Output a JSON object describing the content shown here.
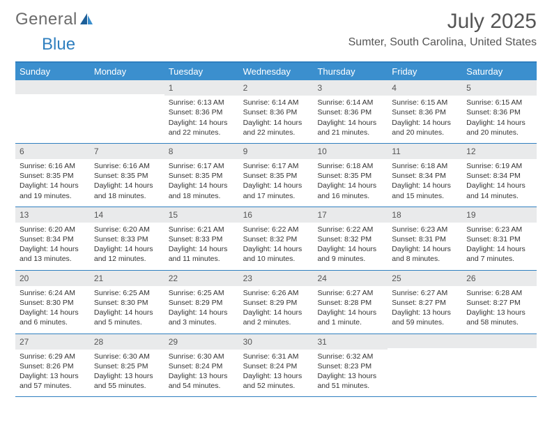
{
  "brand": {
    "word1": "General",
    "word2": "Blue"
  },
  "title": "July 2025",
  "location": "Sumter, South Carolina, United States",
  "colors": {
    "header_bg": "#3b8fce",
    "rule": "#2f7fbf",
    "daynum_bg": "#e9eaeb",
    "text": "#333333",
    "title_text": "#555555"
  },
  "day_headers": [
    "Sunday",
    "Monday",
    "Tuesday",
    "Wednesday",
    "Thursday",
    "Friday",
    "Saturday"
  ],
  "weeks": [
    [
      null,
      null,
      {
        "n": "1",
        "sr": "Sunrise: 6:13 AM",
        "ss": "Sunset: 8:36 PM",
        "d1": "Daylight: 14 hours",
        "d2": "and 22 minutes."
      },
      {
        "n": "2",
        "sr": "Sunrise: 6:14 AM",
        "ss": "Sunset: 8:36 PM",
        "d1": "Daylight: 14 hours",
        "d2": "and 22 minutes."
      },
      {
        "n": "3",
        "sr": "Sunrise: 6:14 AM",
        "ss": "Sunset: 8:36 PM",
        "d1": "Daylight: 14 hours",
        "d2": "and 21 minutes."
      },
      {
        "n": "4",
        "sr": "Sunrise: 6:15 AM",
        "ss": "Sunset: 8:36 PM",
        "d1": "Daylight: 14 hours",
        "d2": "and 20 minutes."
      },
      {
        "n": "5",
        "sr": "Sunrise: 6:15 AM",
        "ss": "Sunset: 8:36 PM",
        "d1": "Daylight: 14 hours",
        "d2": "and 20 minutes."
      }
    ],
    [
      {
        "n": "6",
        "sr": "Sunrise: 6:16 AM",
        "ss": "Sunset: 8:35 PM",
        "d1": "Daylight: 14 hours",
        "d2": "and 19 minutes."
      },
      {
        "n": "7",
        "sr": "Sunrise: 6:16 AM",
        "ss": "Sunset: 8:35 PM",
        "d1": "Daylight: 14 hours",
        "d2": "and 18 minutes."
      },
      {
        "n": "8",
        "sr": "Sunrise: 6:17 AM",
        "ss": "Sunset: 8:35 PM",
        "d1": "Daylight: 14 hours",
        "d2": "and 18 minutes."
      },
      {
        "n": "9",
        "sr": "Sunrise: 6:17 AM",
        "ss": "Sunset: 8:35 PM",
        "d1": "Daylight: 14 hours",
        "d2": "and 17 minutes."
      },
      {
        "n": "10",
        "sr": "Sunrise: 6:18 AM",
        "ss": "Sunset: 8:35 PM",
        "d1": "Daylight: 14 hours",
        "d2": "and 16 minutes."
      },
      {
        "n": "11",
        "sr": "Sunrise: 6:18 AM",
        "ss": "Sunset: 8:34 PM",
        "d1": "Daylight: 14 hours",
        "d2": "and 15 minutes."
      },
      {
        "n": "12",
        "sr": "Sunrise: 6:19 AM",
        "ss": "Sunset: 8:34 PM",
        "d1": "Daylight: 14 hours",
        "d2": "and 14 minutes."
      }
    ],
    [
      {
        "n": "13",
        "sr": "Sunrise: 6:20 AM",
        "ss": "Sunset: 8:34 PM",
        "d1": "Daylight: 14 hours",
        "d2": "and 13 minutes."
      },
      {
        "n": "14",
        "sr": "Sunrise: 6:20 AM",
        "ss": "Sunset: 8:33 PM",
        "d1": "Daylight: 14 hours",
        "d2": "and 12 minutes."
      },
      {
        "n": "15",
        "sr": "Sunrise: 6:21 AM",
        "ss": "Sunset: 8:33 PM",
        "d1": "Daylight: 14 hours",
        "d2": "and 11 minutes."
      },
      {
        "n": "16",
        "sr": "Sunrise: 6:22 AM",
        "ss": "Sunset: 8:32 PM",
        "d1": "Daylight: 14 hours",
        "d2": "and 10 minutes."
      },
      {
        "n": "17",
        "sr": "Sunrise: 6:22 AM",
        "ss": "Sunset: 8:32 PM",
        "d1": "Daylight: 14 hours",
        "d2": "and 9 minutes."
      },
      {
        "n": "18",
        "sr": "Sunrise: 6:23 AM",
        "ss": "Sunset: 8:31 PM",
        "d1": "Daylight: 14 hours",
        "d2": "and 8 minutes."
      },
      {
        "n": "19",
        "sr": "Sunrise: 6:23 AM",
        "ss": "Sunset: 8:31 PM",
        "d1": "Daylight: 14 hours",
        "d2": "and 7 minutes."
      }
    ],
    [
      {
        "n": "20",
        "sr": "Sunrise: 6:24 AM",
        "ss": "Sunset: 8:30 PM",
        "d1": "Daylight: 14 hours",
        "d2": "and 6 minutes."
      },
      {
        "n": "21",
        "sr": "Sunrise: 6:25 AM",
        "ss": "Sunset: 8:30 PM",
        "d1": "Daylight: 14 hours",
        "d2": "and 5 minutes."
      },
      {
        "n": "22",
        "sr": "Sunrise: 6:25 AM",
        "ss": "Sunset: 8:29 PM",
        "d1": "Daylight: 14 hours",
        "d2": "and 3 minutes."
      },
      {
        "n": "23",
        "sr": "Sunrise: 6:26 AM",
        "ss": "Sunset: 8:29 PM",
        "d1": "Daylight: 14 hours",
        "d2": "and 2 minutes."
      },
      {
        "n": "24",
        "sr": "Sunrise: 6:27 AM",
        "ss": "Sunset: 8:28 PM",
        "d1": "Daylight: 14 hours",
        "d2": "and 1 minute."
      },
      {
        "n": "25",
        "sr": "Sunrise: 6:27 AM",
        "ss": "Sunset: 8:27 PM",
        "d1": "Daylight: 13 hours",
        "d2": "and 59 minutes."
      },
      {
        "n": "26",
        "sr": "Sunrise: 6:28 AM",
        "ss": "Sunset: 8:27 PM",
        "d1": "Daylight: 13 hours",
        "d2": "and 58 minutes."
      }
    ],
    [
      {
        "n": "27",
        "sr": "Sunrise: 6:29 AM",
        "ss": "Sunset: 8:26 PM",
        "d1": "Daylight: 13 hours",
        "d2": "and 57 minutes."
      },
      {
        "n": "28",
        "sr": "Sunrise: 6:30 AM",
        "ss": "Sunset: 8:25 PM",
        "d1": "Daylight: 13 hours",
        "d2": "and 55 minutes."
      },
      {
        "n": "29",
        "sr": "Sunrise: 6:30 AM",
        "ss": "Sunset: 8:24 PM",
        "d1": "Daylight: 13 hours",
        "d2": "and 54 minutes."
      },
      {
        "n": "30",
        "sr": "Sunrise: 6:31 AM",
        "ss": "Sunset: 8:24 PM",
        "d1": "Daylight: 13 hours",
        "d2": "and 52 minutes."
      },
      {
        "n": "31",
        "sr": "Sunrise: 6:32 AM",
        "ss": "Sunset: 8:23 PM",
        "d1": "Daylight: 13 hours",
        "d2": "and 51 minutes."
      },
      null,
      null
    ]
  ]
}
